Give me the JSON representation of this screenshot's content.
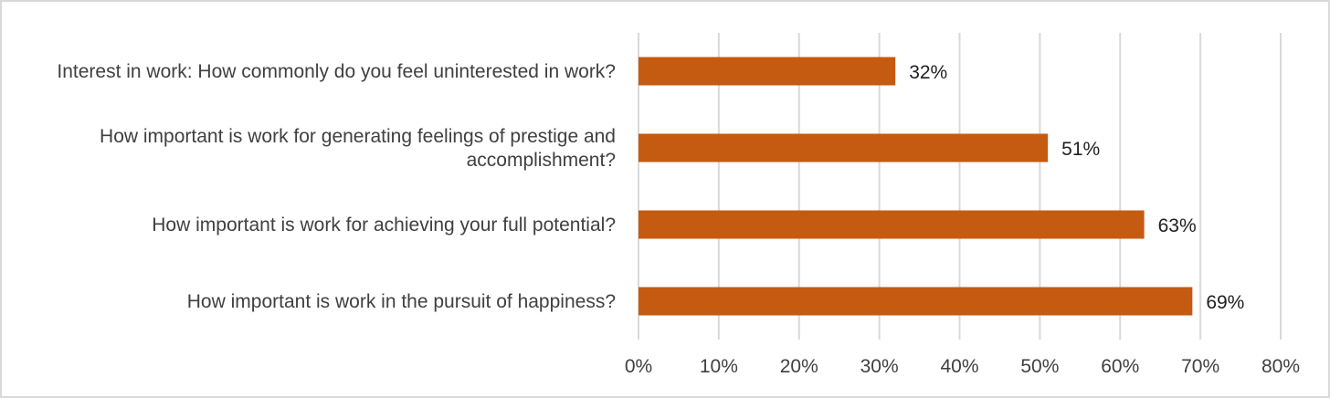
{
  "chart_data": {
    "type": "bar",
    "orientation": "horizontal",
    "categories": [
      "Interest in work: How commonly do you feel uninterested in work?",
      "How important is work for generating feelings of prestige and accomplishment?",
      "How important is work for achieving your full potential?",
      "How important is work in the pursuit of happiness?"
    ],
    "category_lines": [
      [
        "Interest in work: How commonly do you feel uninterested in work?"
      ],
      [
        "How important is work for generating feelings of prestige and",
        "accomplishment?"
      ],
      [
        "How important is work for achieving your full potential?"
      ],
      [
        "How important is work in the pursuit of happiness?"
      ]
    ],
    "values": [
      32,
      51,
      63,
      69
    ],
    "data_labels": [
      "32%",
      "51%",
      "63%",
      "69%"
    ],
    "x_ticks": [
      0,
      10,
      20,
      30,
      40,
      50,
      60,
      70,
      80
    ],
    "x_tick_labels": [
      "0%",
      "10%",
      "20%",
      "30%",
      "40%",
      "50%",
      "60%",
      "70%",
      "80%"
    ],
    "xlim": [
      0,
      80
    ],
    "grid": true,
    "legend": "none",
    "title": "",
    "xlabel": "",
    "ylabel": "",
    "colors": {
      "bar": "#c55a11",
      "grid": "#d9d9d9",
      "frame": "#d9d9d9",
      "text": "#404040"
    }
  }
}
